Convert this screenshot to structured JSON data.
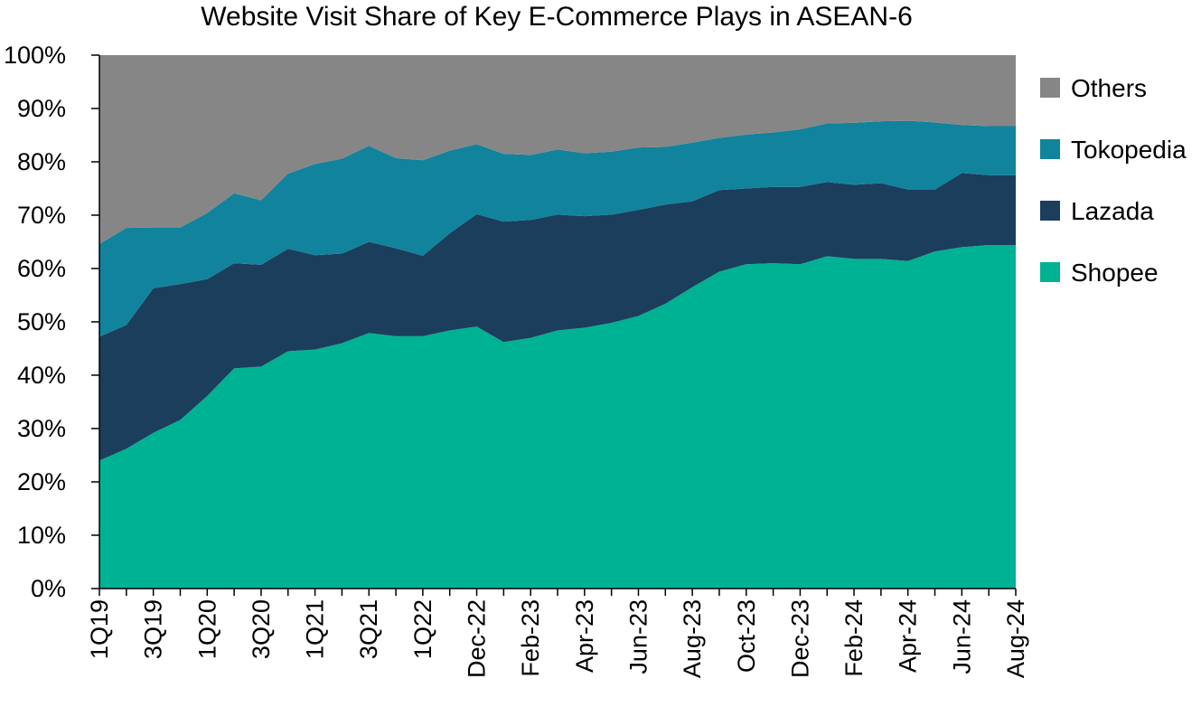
{
  "chart_data": {
    "type": "area",
    "stacked": true,
    "title": "Website Visit Share of Key E-Commerce Plays in ASEAN-6",
    "xlabel": "",
    "ylabel": "",
    "ylim": [
      0,
      100
    ],
    "y_ticks": [
      "0%",
      "10%",
      "20%",
      "30%",
      "40%",
      "50%",
      "60%",
      "70%",
      "80%",
      "90%",
      "100%"
    ],
    "x_tick_labels": [
      "1Q19",
      "3Q19",
      "1Q20",
      "3Q20",
      "1Q21",
      "3Q21",
      "1Q22",
      "Dec-22",
      "Feb-23",
      "Apr-23",
      "Jun-23",
      "Aug-23",
      "Oct-23",
      "Dec-23",
      "Feb-24",
      "Apr-24",
      "Jun-24",
      "Aug-24"
    ],
    "x": [
      "1Q19",
      "2Q19",
      "3Q19",
      "4Q19",
      "1Q20",
      "2Q20",
      "3Q20",
      "4Q20",
      "1Q21",
      "2Q21",
      "3Q21",
      "4Q21",
      "1Q22",
      "2Q22",
      "Dec-22",
      "Jan-23",
      "Feb-23",
      "Mar-23",
      "Apr-23",
      "May-23",
      "Jun-23",
      "Jul-23",
      "Aug-23",
      "Sep-23",
      "Oct-23",
      "Nov-23",
      "Dec-23",
      "Jan-24",
      "Feb-24",
      "Mar-24",
      "Apr-24",
      "May-24",
      "Jun-24",
      "Jul-24",
      "Aug-24"
    ],
    "legend_position": "right",
    "grid": false,
    "series": [
      {
        "name": "Shopee",
        "color": "#00b294",
        "values": [
          24.0,
          26.2,
          29.2,
          31.6,
          36.1,
          41.3,
          41.6,
          44.5,
          44.8,
          46.0,
          47.9,
          47.3,
          47.3,
          48.4,
          49.1,
          46.2,
          47.0,
          48.4,
          48.9,
          49.8,
          51.1,
          53.4,
          56.5,
          59.4,
          60.8,
          61.0,
          60.8,
          62.3,
          61.8,
          61.8,
          61.4,
          63.2,
          64.0,
          64.4,
          64.4
        ]
      },
      {
        "name": "Lazada",
        "color": "#1b3e5c",
        "values": [
          23.2,
          23.2,
          27.1,
          25.5,
          21.9,
          19.7,
          19.1,
          19.2,
          17.7,
          16.8,
          17.1,
          16.5,
          15.1,
          18.2,
          21.1,
          22.6,
          22.1,
          21.7,
          20.9,
          20.3,
          19.9,
          18.6,
          16.1,
          15.3,
          14.2,
          14.3,
          14.5,
          13.9,
          13.9,
          14.2,
          13.4,
          11.6,
          13.9,
          13.1,
          13.1
        ]
      },
      {
        "name": "Tokopedia",
        "color": "#11839c",
        "values": [
          17.4,
          18.2,
          11.4,
          10.6,
          12.4,
          13.1,
          12.1,
          14.1,
          17.1,
          17.8,
          18.0,
          16.9,
          17.9,
          15.5,
          13.1,
          12.7,
          12.2,
          12.2,
          11.8,
          11.8,
          11.7,
          10.8,
          11.0,
          9.8,
          10.1,
          10.2,
          10.8,
          11.0,
          11.6,
          11.6,
          12.9,
          12.6,
          9.0,
          9.2,
          9.2
        ]
      },
      {
        "name": "Others",
        "color": "#868686",
        "values": [
          35.4,
          32.4,
          32.3,
          32.3,
          29.6,
          25.9,
          27.2,
          22.2,
          20.4,
          19.4,
          17.0,
          19.3,
          19.7,
          17.9,
          16.7,
          18.5,
          18.7,
          17.7,
          18.4,
          18.1,
          17.3,
          17.2,
          16.4,
          15.5,
          14.9,
          14.5,
          13.9,
          12.8,
          12.7,
          12.4,
          12.3,
          12.6,
          13.1,
          13.3,
          13.3
        ]
      }
    ]
  }
}
